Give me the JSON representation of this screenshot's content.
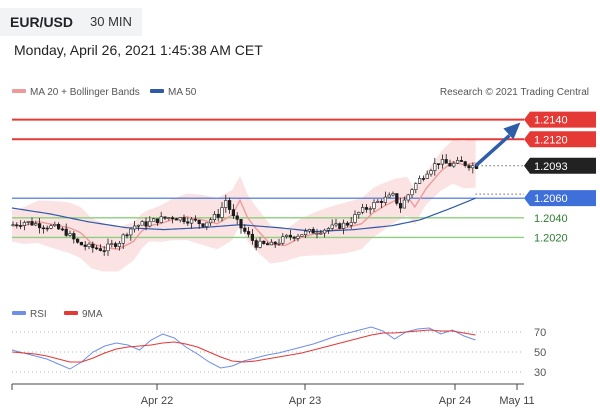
{
  "header": {
    "symbol": "EUR/USD",
    "timeframe": "30 MIN",
    "datetime": "Monday, April 26, 2021 1:45:38 AM CET"
  },
  "colors": {
    "ma20": "#ef9a9a",
    "ma50": "#2f5aa8",
    "resistance": "#e53935",
    "current": "#222222",
    "support_blue": "#3f6fd8",
    "support_green": "#8ccf7e",
    "rsi": "#6f8ee8",
    "rsi_ma": "#e53935",
    "forecast_arrow": "#2f5ea8"
  },
  "chart_data": [
    {
      "type": "candlestick",
      "legend": [
        {
          "label": "MA 20 + Bollinger Bands",
          "color": "#ef9a9a"
        },
        {
          "label": "MA 50",
          "color": "#2f5aa8"
        }
      ],
      "copyright": "Research © 2021 Trading Central",
      "x_ticks": [
        "Apr 22",
        "Apr 23",
        "Apr 24",
        "May 11"
      ],
      "ylim": [
        1.1995,
        1.216
      ],
      "levels": [
        {
          "label": "1.2140",
          "value": 1.214,
          "kind": "resistance"
        },
        {
          "label": "1.2120",
          "value": 1.212,
          "kind": "resistance"
        },
        {
          "label": "1.2093",
          "value": 1.2093,
          "kind": "current"
        },
        {
          "label": "1.2060",
          "value": 1.206,
          "kind": "support_blue"
        },
        {
          "label": "1.2040",
          "value": 1.204,
          "kind": "support_green"
        },
        {
          "label": "1.2020",
          "value": 1.202,
          "kind": "support_green"
        }
      ],
      "price_path": [
        [
          0,
          1.2032
        ],
        [
          8,
          1.2036
        ],
        [
          16,
          1.2033
        ],
        [
          24,
          1.203
        ],
        [
          30,
          1.2025
        ],
        [
          36,
          1.2014
        ],
        [
          42,
          1.201
        ],
        [
          50,
          1.2008
        ],
        [
          58,
          1.2016
        ],
        [
          62,
          1.2026
        ],
        [
          66,
          1.2032
        ],
        [
          72,
          1.2034
        ],
        [
          78,
          1.2038
        ],
        [
          86,
          1.2041
        ],
        [
          94,
          1.2038
        ],
        [
          102,
          1.2034
        ],
        [
          110,
          1.2043
        ],
        [
          114,
          1.2058
        ],
        [
          118,
          1.204
        ],
        [
          122,
          1.203
        ],
        [
          130,
          1.2013
        ],
        [
          138,
          1.2012
        ],
        [
          146,
          1.202
        ],
        [
          154,
          1.2024
        ],
        [
          162,
          1.2027
        ],
        [
          170,
          1.203
        ],
        [
          178,
          1.2034
        ],
        [
          184,
          1.2045
        ],
        [
          190,
          1.2052
        ],
        [
          196,
          1.2058
        ],
        [
          202,
          1.2062
        ],
        [
          206,
          1.2051
        ],
        [
          212,
          1.207
        ],
        [
          220,
          1.2088
        ],
        [
          226,
          1.2097
        ],
        [
          232,
          1.2094
        ],
        [
          238,
          1.2096
        ],
        [
          244,
          1.2093
        ]
      ],
      "ma50_path": [
        [
          0,
          1.205
        ],
        [
          20,
          1.2044
        ],
        [
          40,
          1.2036
        ],
        [
          60,
          1.203
        ],
        [
          80,
          1.2028
        ],
        [
          100,
          1.203
        ],
        [
          120,
          1.2033
        ],
        [
          140,
          1.203
        ],
        [
          160,
          1.2026
        ],
        [
          180,
          1.2028
        ],
        [
          200,
          1.2032
        ],
        [
          215,
          1.2038
        ],
        [
          230,
          1.2049
        ],
        [
          244,
          1.206
        ]
      ],
      "forecast_arrow": {
        "from": [
          244,
          1.2093
        ],
        "to": [
          266,
          1.2133
        ]
      }
    },
    {
      "type": "line",
      "series": [
        {
          "name": "RSI",
          "color": "#6f8ee8"
        },
        {
          "name": "9MA",
          "color": "#e53935"
        }
      ],
      "y_ticks": [
        70,
        50,
        30
      ],
      "ylim": [
        20,
        80
      ],
      "rsi_values": [
        52,
        49,
        46,
        43,
        38,
        33,
        40,
        50,
        56,
        59,
        57,
        52,
        62,
        68,
        64,
        55,
        48,
        40,
        34,
        36,
        41,
        44,
        47,
        49,
        52,
        55,
        58,
        62,
        66,
        69,
        72,
        75,
        71,
        63,
        70,
        73,
        74,
        68,
        72,
        66,
        62
      ],
      "rsi_ma_values": [
        50,
        49,
        48,
        46,
        43,
        40,
        40,
        44,
        49,
        53,
        55,
        56,
        57,
        59,
        60,
        58,
        55,
        50,
        45,
        41,
        40,
        41,
        43,
        45,
        47,
        49,
        52,
        55,
        58,
        61,
        64,
        67,
        69,
        69,
        70,
        71,
        72,
        71,
        71,
        69,
        67
      ]
    }
  ]
}
